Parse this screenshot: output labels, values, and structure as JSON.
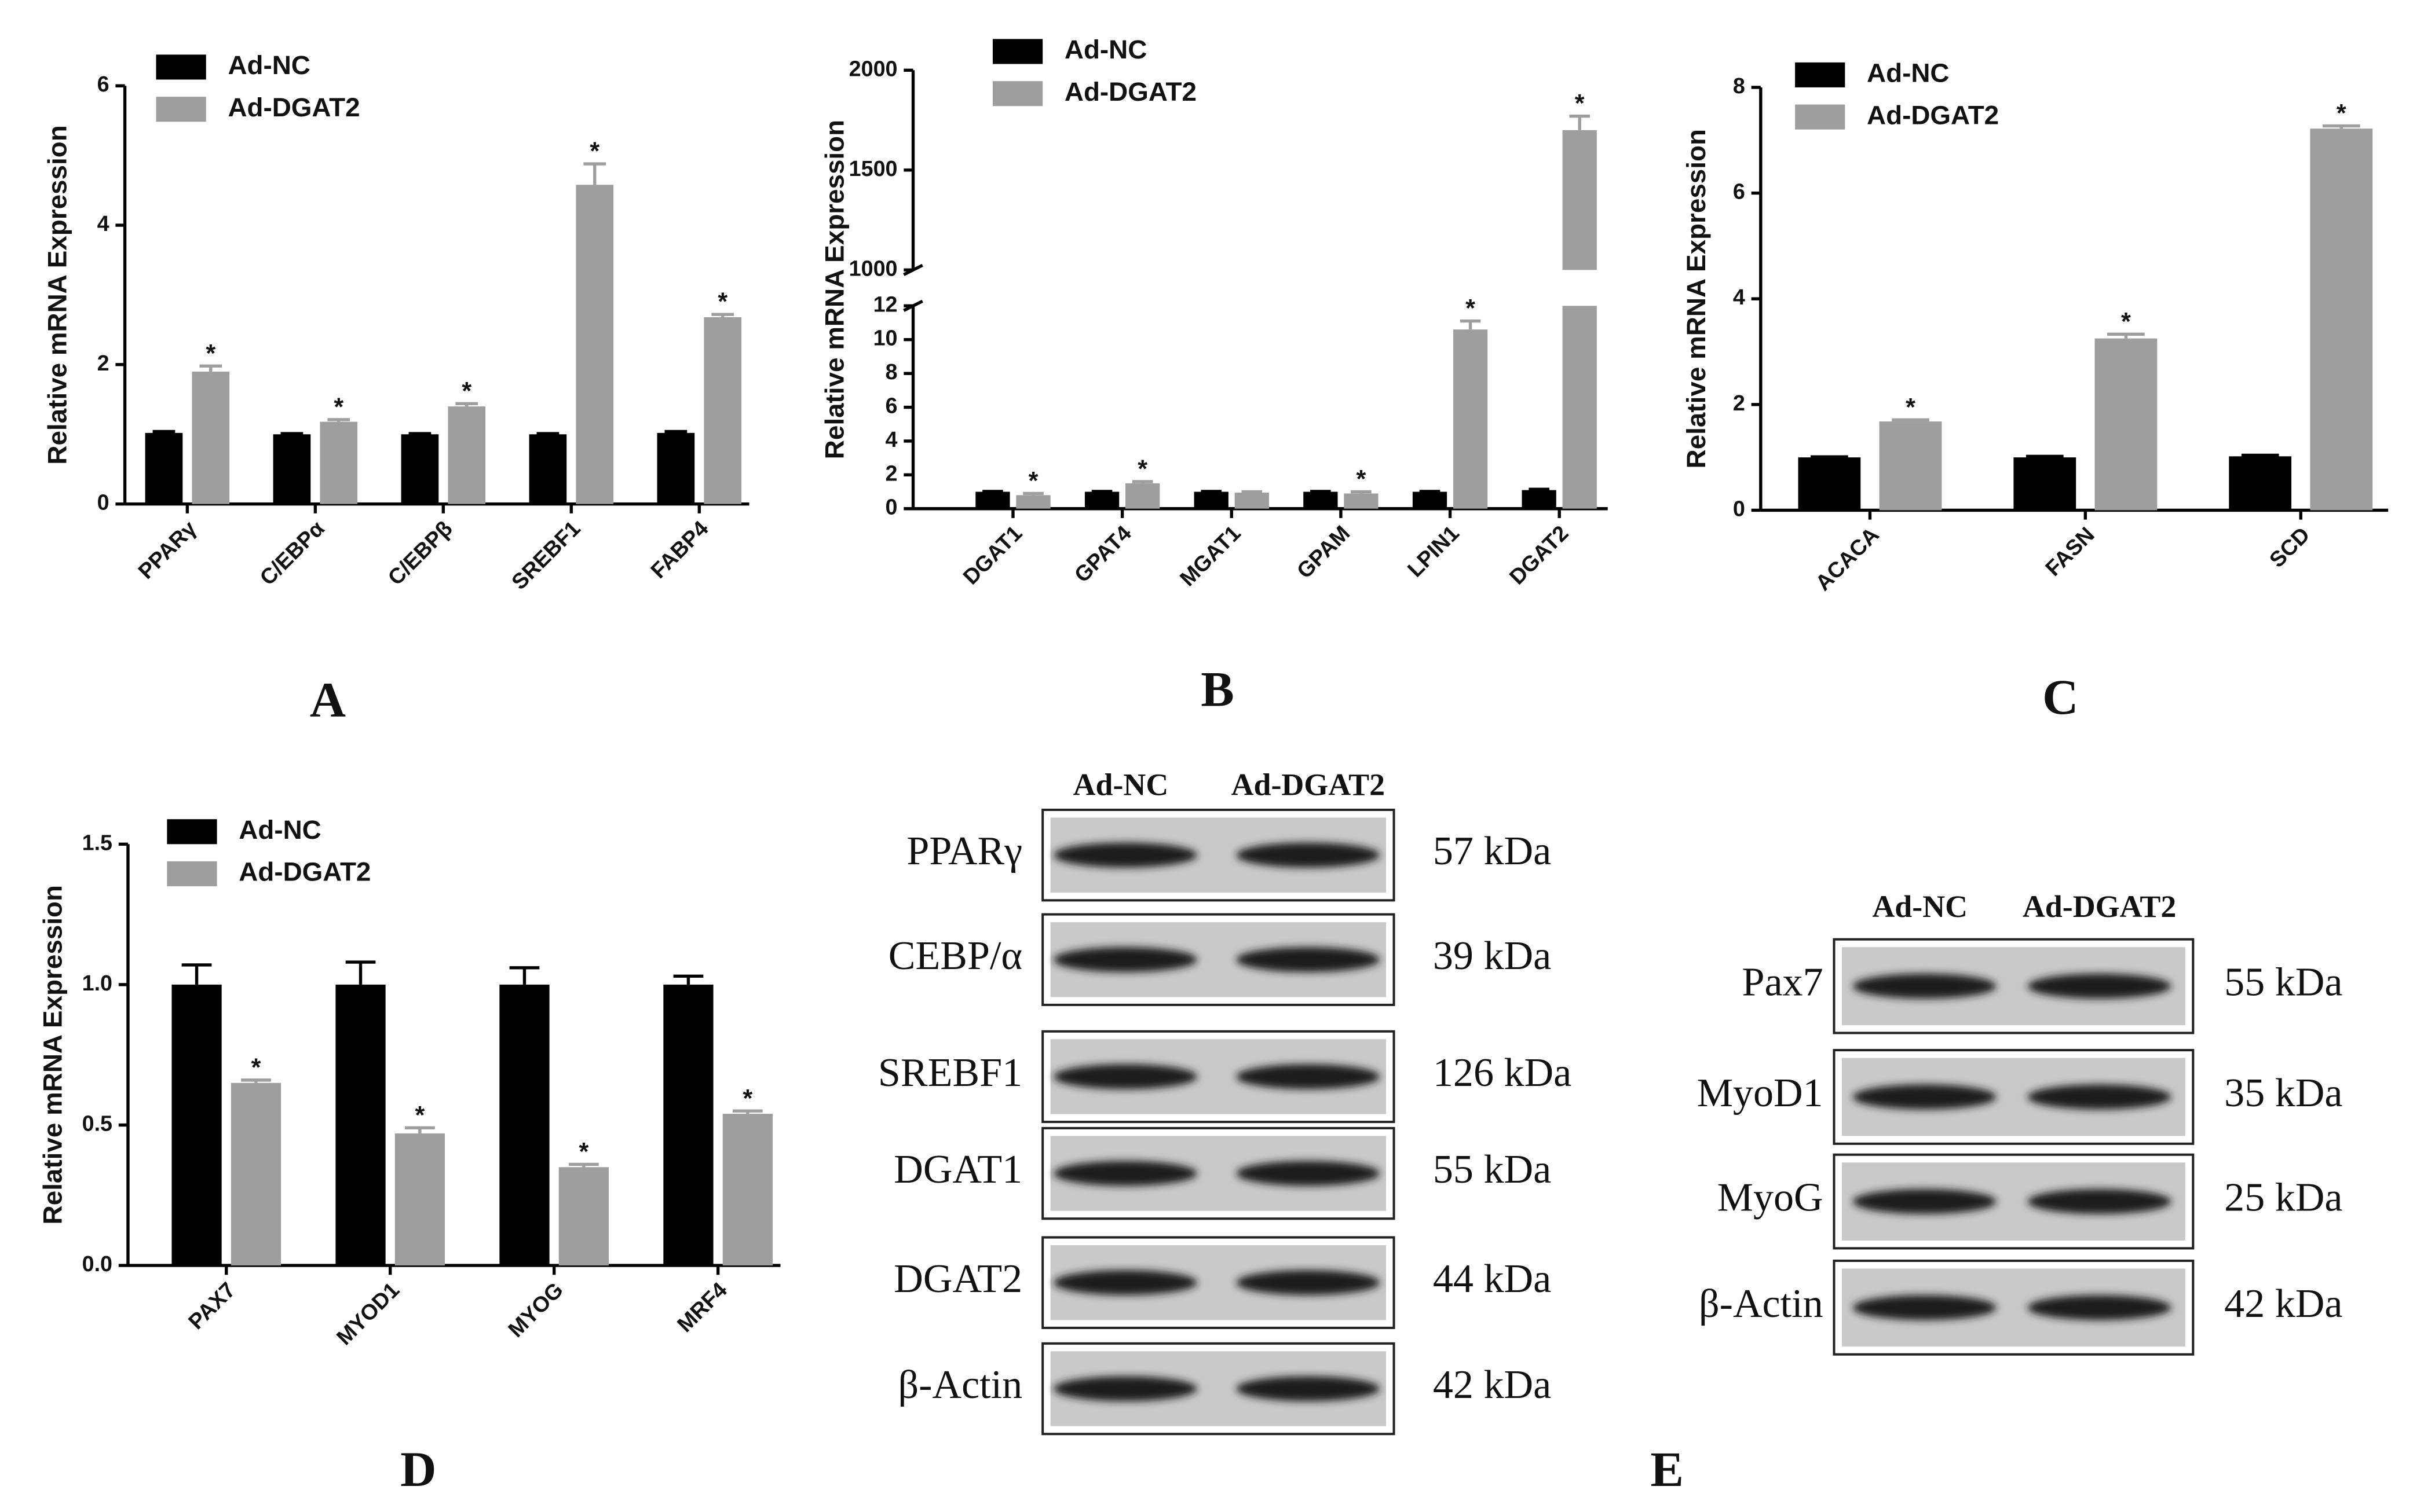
{
  "chart_data": [
    {
      "type": "bar",
      "panel": "A",
      "y_label": "Relative mRNA Expression",
      "categories": [
        "PPARγ",
        "C/EBPα",
        "C/EBPβ",
        "SREBF1",
        "FABP4"
      ],
      "series": [
        {
          "name": "Ad-NC",
          "color": "#000000",
          "values": [
            1.02,
            1.0,
            1.0,
            1.0,
            1.02
          ],
          "errors": [
            0.02,
            0.01,
            0.01,
            0.01,
            0.02
          ]
        },
        {
          "name": "Ad-DGAT2",
          "color": "#9e9e9e",
          "values": [
            1.9,
            1.18,
            1.4,
            4.58,
            2.68
          ],
          "errors": [
            0.08,
            0.03,
            0.04,
            0.3,
            0.04
          ],
          "markers": [
            "*",
            "*",
            "*",
            "*",
            "*"
          ]
        }
      ],
      "ylim": [
        0,
        6
      ],
      "yticks": [
        0,
        2,
        4,
        6
      ]
    },
    {
      "type": "bar",
      "panel": "B",
      "y_label": "Relative mRNA Expression",
      "categories": [
        "DGAT1",
        "GPAT4",
        "MGAT1",
        "GPAM",
        "LPIN1",
        "DGAT2"
      ],
      "series": [
        {
          "name": "Ad-NC",
          "color": "#000000",
          "values": [
            1.0,
            1.0,
            1.0,
            1.0,
            1.0,
            1.1
          ],
          "errors": [
            0.02,
            0.02,
            0.02,
            0.02,
            0.02,
            0.05
          ]
        },
        {
          "name": "Ad-DGAT2",
          "color": "#9e9e9e",
          "values": [
            0.8,
            1.5,
            0.95,
            0.9,
            10.6,
            1700
          ],
          "errors": [
            0.1,
            0.1,
            0.05,
            0.1,
            0.5,
            70
          ],
          "markers": [
            "*",
            "*",
            null,
            "*",
            "*",
            "*"
          ]
        }
      ],
      "ylim": [
        0,
        2000
      ],
      "y_break": [
        12,
        1000
      ],
      "yticks": [
        0,
        2,
        4,
        6,
        8,
        10,
        12,
        1000,
        1500,
        2000
      ]
    },
    {
      "type": "bar",
      "panel": "C",
      "y_label": "Relative mRNA Expression",
      "categories": [
        "ACACA",
        "FASN",
        "SCD"
      ],
      "series": [
        {
          "name": "Ad-NC",
          "color": "#000000",
          "values": [
            1.0,
            1.0,
            1.02
          ],
          "errors": [
            0.01,
            0.02,
            0.02
          ]
        },
        {
          "name": "Ad-DGAT2",
          "color": "#9e9e9e",
          "values": [
            1.68,
            3.25,
            7.22
          ],
          "errors": [
            0.03,
            0.08,
            0.05
          ],
          "markers": [
            "*",
            "*",
            "*"
          ]
        }
      ],
      "ylim": [
        0,
        8
      ],
      "yticks": [
        0,
        2,
        4,
        6,
        8
      ]
    },
    {
      "type": "bar",
      "panel": "D",
      "y_label": "Relative mRNA Expression",
      "categories": [
        "PAX7",
        "MYOD1",
        "MYOG",
        "MRF4"
      ],
      "series": [
        {
          "name": "Ad-NC",
          "color": "#000000",
          "values": [
            1.0,
            1.0,
            1.0,
            1.0
          ],
          "errors": [
            0.07,
            0.08,
            0.06,
            0.03
          ]
        },
        {
          "name": "Ad-DGAT2",
          "color": "#9e9e9e",
          "values": [
            0.65,
            0.47,
            0.35,
            0.54
          ],
          "errors": [
            0.01,
            0.02,
            0.01,
            0.01
          ],
          "markers": [
            "*",
            "*",
            "*",
            "*"
          ]
        }
      ],
      "ylim": [
        0,
        1.5
      ],
      "yticks": [
        {
          "value": 0,
          "label": "0.0"
        },
        0.5,
        {
          "value": 1,
          "label": "1.0"
        },
        1.5
      ]
    }
  ],
  "blots": {
    "panel": "E",
    "items": [
      {
        "lanes": [
          "Ad-NC",
          "Ad-DGAT2"
        ],
        "rows": [
          {
            "protein": "PPARγ",
            "size": "57 kDa"
          },
          {
            "protein": "CEBP/α",
            "size": "39 kDa"
          },
          {
            "protein": "SREBF1",
            "size": "126 kDa"
          },
          {
            "protein": "DGAT1",
            "size": "55 kDa"
          },
          {
            "protein": "DGAT2",
            "size": "44 kDa"
          },
          {
            "protein": "β-Actin",
            "size": "42 kDa"
          }
        ]
      },
      {
        "lanes": [
          "Ad-NC",
          "Ad-DGAT2"
        ],
        "rows": [
          {
            "protein": "Pax7",
            "size": "55 kDa"
          },
          {
            "protein": "MyoD1",
            "size": "35 kDa"
          },
          {
            "protein": "MyoG",
            "size": "25 kDa"
          },
          {
            "protein": "β-Actin",
            "size": "42 kDa"
          }
        ]
      }
    ]
  }
}
